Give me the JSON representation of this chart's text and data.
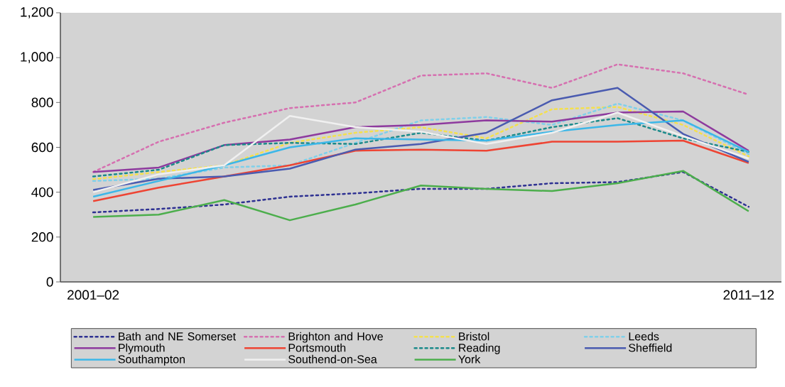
{
  "chart_data": {
    "type": "line",
    "categories": [
      "2001–02",
      null,
      null,
      null,
      null,
      null,
      null,
      null,
      null,
      null,
      "2011–12"
    ],
    "ylim": [
      0,
      1200
    ],
    "yticks": [
      0,
      200,
      400,
      600,
      800,
      {
        "value": 1000,
        "label": "1,000"
      },
      {
        "value": 1200,
        "label": "1,200"
      }
    ],
    "grid": false,
    "legend": "bottom",
    "marker": "none",
    "series": [
      {
        "name": "Bath and NE Somerset",
        "color": "#2e3192",
        "line_style": "dashed",
        "values": [
          310,
          325,
          345,
          380,
          395,
          415,
          415,
          440,
          445,
          490,
          335
        ]
      },
      {
        "name": "Brighton and Hove",
        "color": "#d670b0",
        "line_style": "dashed",
        "values": [
          490,
          625,
          710,
          775,
          800,
          920,
          930,
          865,
          970,
          930,
          835
        ]
      },
      {
        "name": "Bristol",
        "color": "#f4e04d",
        "line_style": "dashed",
        "values": [
          458,
          490,
          520,
          620,
          665,
          690,
          640,
          770,
          780,
          700,
          560
        ]
      },
      {
        "name": "Leeds",
        "color": "#7fd0ea",
        "line_style": "dashed",
        "values": [
          450,
          460,
          510,
          520,
          620,
          720,
          735,
          700,
          795,
          720,
          570
        ]
      },
      {
        "name": "Plymouth",
        "color": "#8e3a9e",
        "line_style": "solid",
        "values": [
          490,
          510,
          610,
          635,
          690,
          700,
          720,
          715,
          755,
          760,
          585
        ]
      },
      {
        "name": "Portsmouth",
        "color": "#ee4433",
        "line_style": "solid",
        "values": [
          360,
          420,
          470,
          520,
          585,
          590,
          585,
          625,
          625,
          630,
          530
        ]
      },
      {
        "name": "Reading",
        "color": "#1a8a8a",
        "line_style": "dashed",
        "values": [
          470,
          500,
          610,
          620,
          615,
          665,
          630,
          690,
          730,
          640,
          580
        ]
      },
      {
        "name": "Sheffield",
        "color": "#4a5bb0",
        "line_style": "solid",
        "values": [
          410,
          460,
          470,
          505,
          590,
          615,
          665,
          810,
          865,
          660,
          535
        ]
      },
      {
        "name": "Southampton",
        "color": "#3cb7e8",
        "line_style": "solid",
        "values": [
          380,
          450,
          520,
          600,
          640,
          635,
          630,
          670,
          700,
          720,
          580
        ]
      },
      {
        "name": "Southend-on-Sea",
        "color": "#f0f0f0",
        "line_style": "solid",
        "values": [
          400,
          480,
          520,
          740,
          690,
          670,
          615,
          665,
          755,
          650,
          550
        ]
      },
      {
        "name": "York",
        "color": "#4cae4c",
        "line_style": "solid",
        "values": [
          290,
          300,
          365,
          275,
          345,
          430,
          415,
          405,
          440,
          495,
          315
        ]
      }
    ]
  }
}
